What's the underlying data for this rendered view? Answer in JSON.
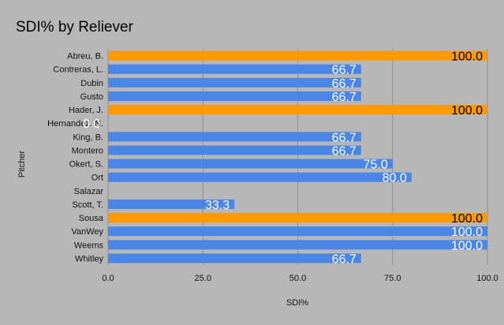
{
  "chart_data": {
    "type": "bar",
    "orientation": "horizontal",
    "title": "SDI% by Reliever",
    "xlabel": "SDI%",
    "ylabel": "Pitcher",
    "xlim": [
      0,
      100
    ],
    "xticks": [
      "0.0",
      "25.0",
      "50.0",
      "75.0",
      "100.0"
    ],
    "grid": true,
    "legend": "none",
    "colors": {
      "highlight": "#ff9900",
      "default": "#4a86e8"
    },
    "bars": [
      {
        "category": "Abreu, B.",
        "value": 100.0,
        "label": "100.0",
        "highlight": true
      },
      {
        "category": "Contreras, L.",
        "value": 66.7,
        "label": "66.7",
        "highlight": false
      },
      {
        "category": "Dubin",
        "value": 66.7,
        "label": "66.7",
        "highlight": false
      },
      {
        "category": "Gusto",
        "value": 66.7,
        "label": "66.7",
        "highlight": false
      },
      {
        "category": "Hader, J.",
        "value": 100.0,
        "label": "100.0",
        "highlight": true
      },
      {
        "category": "Hernandez, N.",
        "value": 0.0,
        "label": "0.0",
        "highlight": false
      },
      {
        "category": "King, B.",
        "value": 66.7,
        "label": "66.7",
        "highlight": false
      },
      {
        "category": "Montero",
        "value": 66.7,
        "label": "66.7",
        "highlight": false
      },
      {
        "category": "Okert, S.",
        "value": 75.0,
        "label": "75.0",
        "highlight": false
      },
      {
        "category": "Ort",
        "value": 80.0,
        "label": "80.0",
        "highlight": false
      },
      {
        "category": "Salazar",
        "value": null,
        "label": "",
        "highlight": false
      },
      {
        "category": "Scott, T.",
        "value": 33.3,
        "label": "33.3",
        "highlight": false
      },
      {
        "category": "Sousa",
        "value": 100.0,
        "label": "100.0",
        "highlight": true
      },
      {
        "category": "VanWey",
        "value": 100.0,
        "label": "100.0",
        "highlight": false
      },
      {
        "category": "Weems",
        "value": 100.0,
        "label": "100.0",
        "highlight": false
      },
      {
        "category": "Whitley",
        "value": 66.7,
        "label": "66.7",
        "highlight": false
      }
    ]
  }
}
